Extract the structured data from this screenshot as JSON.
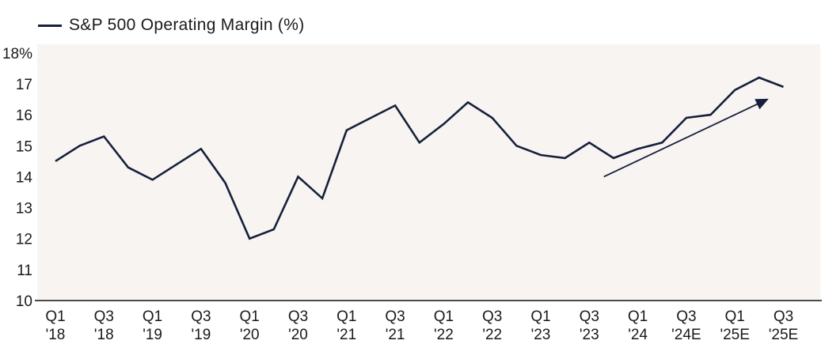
{
  "legend": {
    "label": "S&P 500 Operating Margin (%)"
  },
  "colors": {
    "line": "#16203c",
    "text": "#1a1a1a",
    "axis": "#4b4b4b",
    "plot_background": "#f8f4f1",
    "page_background": "#ffffff"
  },
  "chart_data": {
    "type": "line",
    "title": "",
    "legend": [
      "S&P 500 Operating Margin (%)"
    ],
    "legend_position": "top-left",
    "grid": false,
    "ylim": [
      10,
      18
    ],
    "ytick_labels": [
      "18%",
      "17",
      "16",
      "15",
      "14",
      "13",
      "12",
      "11",
      "10"
    ],
    "ytick_values": [
      18,
      17,
      16,
      15,
      14,
      13,
      12,
      11,
      10
    ],
    "x": [
      "Q1 '18",
      "Q2 '18",
      "Q3 '18",
      "Q4 '18",
      "Q1 '19",
      "Q2 '19",
      "Q3 '19",
      "Q4 '19",
      "Q1 '20",
      "Q2 '20",
      "Q3 '20",
      "Q4 '20",
      "Q1 '21",
      "Q2 '21",
      "Q3 '21",
      "Q4 '21",
      "Q1 '22",
      "Q2 '22",
      "Q3 '22",
      "Q4 '22",
      "Q1 '23",
      "Q2 '23",
      "Q3 '23",
      "Q4 '23",
      "Q1 '24",
      "Q2 '24",
      "Q3 '24E",
      "Q4 '24E",
      "Q1 '25E",
      "Q2 '25E",
      "Q3 '25E"
    ],
    "xtick_labels": [
      [
        "Q1",
        "'18"
      ],
      [
        "Q3",
        "'18"
      ],
      [
        "Q1",
        "'19"
      ],
      [
        "Q3",
        "'19"
      ],
      [
        "Q1",
        "'20"
      ],
      [
        "Q3",
        "'20"
      ],
      [
        "Q1",
        "'21"
      ],
      [
        "Q3",
        "'21"
      ],
      [
        "Q1",
        "'22"
      ],
      [
        "Q3",
        "'22"
      ],
      [
        "Q1",
        "'23"
      ],
      [
        "Q3",
        "'23"
      ],
      [
        "Q1",
        "'24"
      ],
      [
        "Q3",
        "'24E"
      ],
      [
        "Q1",
        "'25E"
      ],
      [
        "Q3",
        "'25E"
      ]
    ],
    "xtick_every_n_quarters": 2,
    "series": [
      {
        "name": "S&P 500 Operating Margin (%)",
        "values": [
          14.5,
          15.0,
          15.3,
          14.3,
          13.9,
          14.4,
          14.9,
          13.8,
          12.0,
          12.3,
          14.0,
          13.3,
          15.5,
          15.9,
          16.3,
          15.1,
          15.7,
          16.4,
          15.9,
          15.0,
          14.7,
          14.6,
          15.1,
          14.6,
          14.9,
          15.1,
          15.9,
          16.0,
          16.8,
          17.2,
          16.9
        ]
      }
    ],
    "annotation": {
      "type": "trend-arrow",
      "from": {
        "x_index": 22.6,
        "value": 14.0
      },
      "to": {
        "x_index": 29.6,
        "value": 16.6
      }
    }
  }
}
